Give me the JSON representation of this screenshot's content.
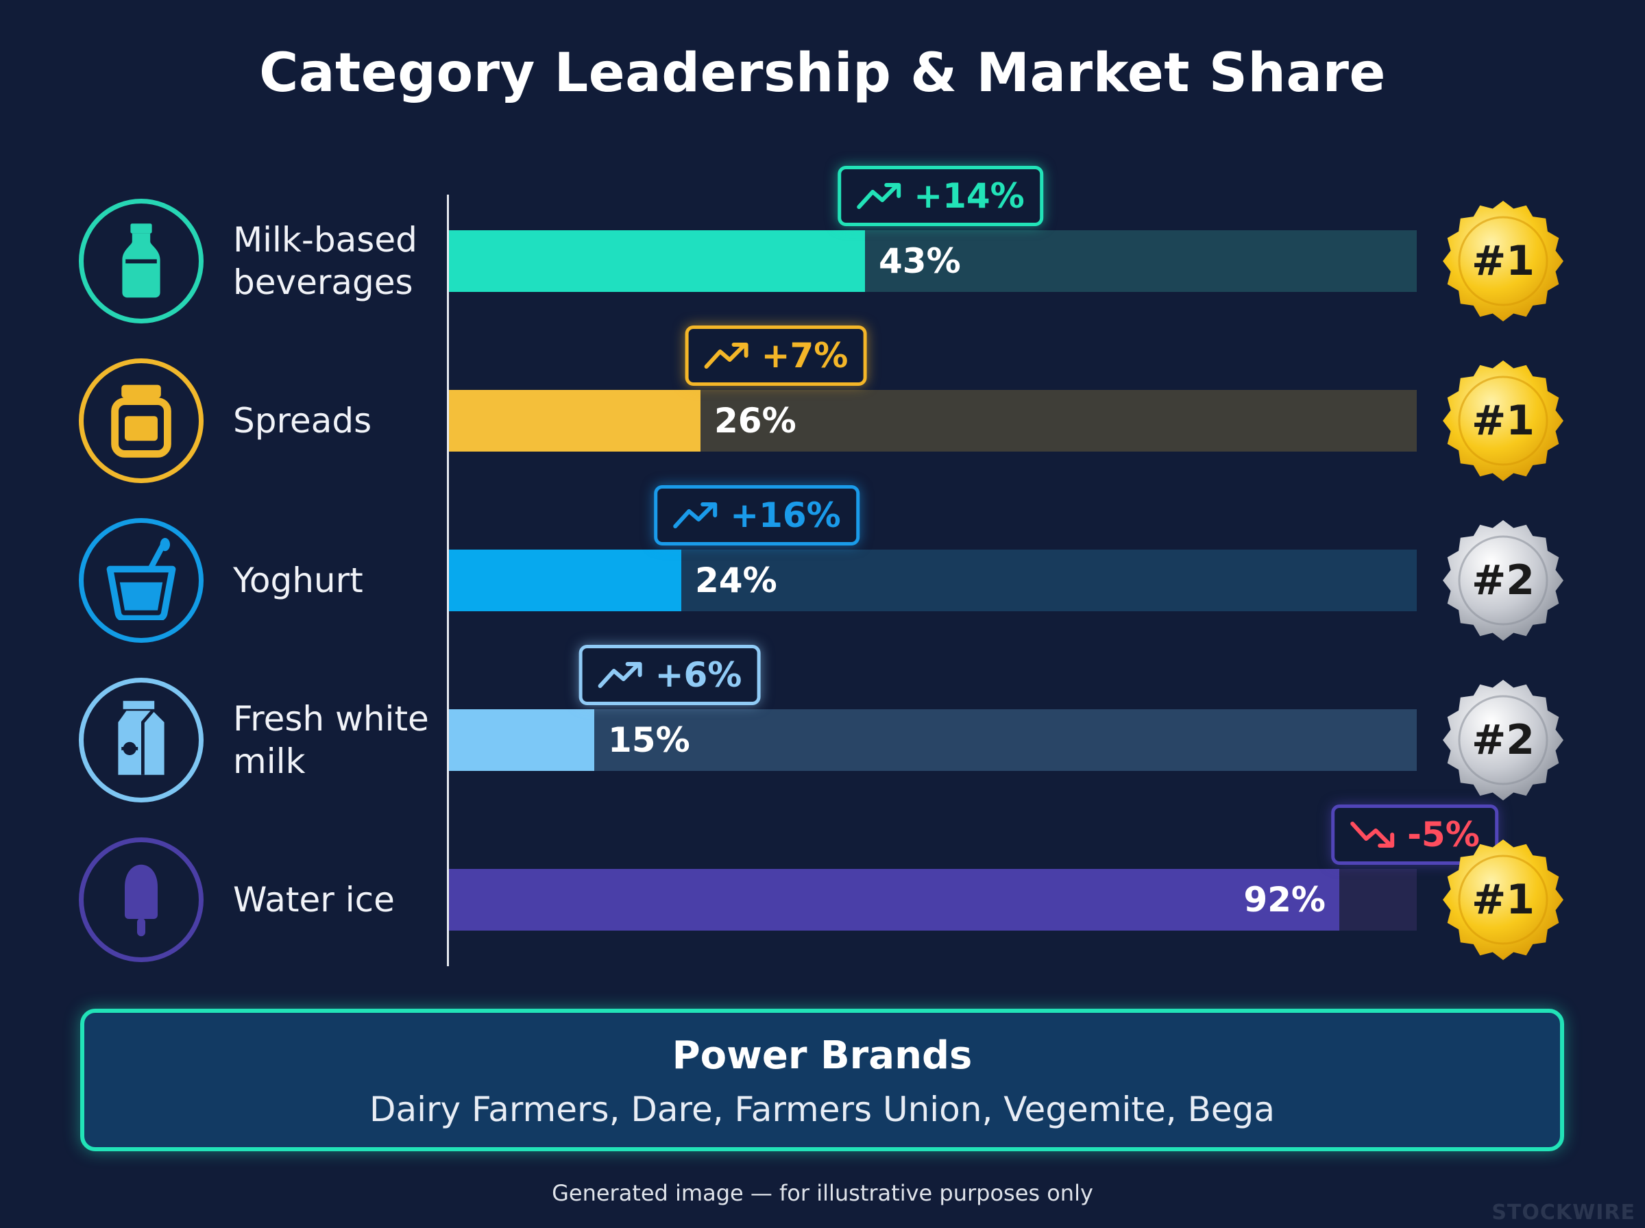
{
  "title": "Category Leadership & Market Share",
  "colors": {
    "background": "#111c38",
    "gold": "#f5c21b",
    "silver": "#c9ccd3",
    "up": "#22e3b8",
    "down": "#ff4d5e"
  },
  "chart_data": {
    "type": "bar",
    "orientation": "horizontal",
    "title": "Category Leadership & Market Share",
    "xlim": [
      0,
      100
    ],
    "categories": [
      "Milk-based beverages",
      "Spreads",
      "Yoghurt",
      "Fresh white milk",
      "Water ice"
    ],
    "values": [
      43,
      26,
      24,
      15,
      92
    ],
    "value_labels": [
      "43%",
      "26%",
      "24%",
      "15%",
      "92%"
    ],
    "changes": [
      "+14%",
      "+7%",
      "+16%",
      "+6%",
      "-5%"
    ],
    "change_direction": [
      "up",
      "up",
      "up",
      "up",
      "down"
    ],
    "ranks": [
      "#1",
      "#1",
      "#2",
      "#2",
      "#1"
    ],
    "rank_medals": [
      "gold",
      "gold",
      "silver",
      "silver",
      "gold"
    ],
    "icons": [
      "milk-bottle-icon",
      "jar-icon",
      "yoghurt-cup-icon",
      "milk-carton-icon",
      "ice-pop-icon"
    ],
    "bar_colors": [
      "#1fe0c0",
      "#f4bf3a",
      "#07a9ee",
      "#7cc8f7",
      "#4a3fa8"
    ],
    "track_colors": [
      "#1d4556",
      "#3f3e38",
      "#183b5c",
      "#294566",
      "#25264f"
    ],
    "icon_colors": [
      "#27d6b4",
      "#f1b82c",
      "#129ce6",
      "#7ec6f3",
      "#4b3fa6"
    ],
    "badge_colors": [
      "#22e3b8",
      "#f4b628",
      "#1a9bea",
      "#90cbf6",
      "#ff4d5e"
    ],
    "badge_border_colors": [
      "#22e3b8",
      "#f4b628",
      "#1a9bea",
      "#90cbf6",
      "#5145b8"
    ]
  },
  "brands": {
    "title": "Power Brands",
    "list": "Dairy Farmers, Dare, Farmers Union, Vegemite, Bega"
  },
  "footnote": "Generated image — for illustrative purposes only",
  "watermark": "STOCKWIRE"
}
